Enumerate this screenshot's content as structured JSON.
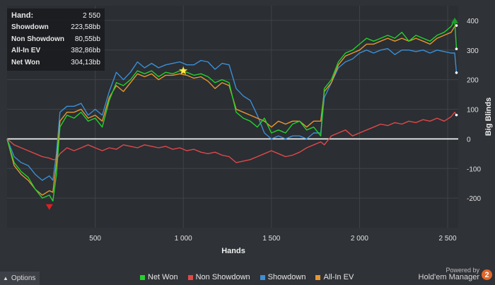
{
  "stats": [
    {
      "label": "Hand:",
      "value": "2 550"
    },
    {
      "label": "Showdown",
      "value": "223,58bb"
    },
    {
      "label": "Non Showdown",
      "value": "80,55bb"
    },
    {
      "label": "All-In EV",
      "value": "382,86bb"
    },
    {
      "label": "Net Won",
      "value": "304,13bb"
    }
  ],
  "options_label": "Options",
  "branding": {
    "powered_by": "Powered by",
    "product": "Hold'em Manager",
    "badge": "2"
  },
  "colors": {
    "net_won": "#22d12c",
    "non_showdown": "#e04848",
    "showdown": "#3a8fd6",
    "all_in_ev": "#e8962e",
    "zero_line": "#ffffff"
  },
  "chart_data": {
    "type": "line",
    "xlabel": "Hands",
    "ylabel": "Big Blinds",
    "xlim": [
      0,
      2560
    ],
    "ylim": [
      -300,
      450
    ],
    "x_ticks": [
      500,
      1000,
      1500,
      2000,
      2500
    ],
    "x_tick_labels": [
      "500",
      "1 000",
      "1 500",
      "2 000",
      "2 500"
    ],
    "y_ticks": [
      -200,
      -100,
      0,
      100,
      200,
      300,
      400
    ],
    "y_tick_labels": [
      "-200",
      "-100",
      "0",
      "100",
      "200",
      "300",
      "400"
    ],
    "grid": true,
    "legend_position": "bottom",
    "x": [
      0,
      40,
      80,
      120,
      160,
      200,
      240,
      260,
      280,
      300,
      340,
      380,
      420,
      460,
      500,
      540,
      580,
      620,
      660,
      700,
      740,
      780,
      820,
      860,
      900,
      940,
      980,
      1020,
      1060,
      1100,
      1140,
      1180,
      1220,
      1260,
      1300,
      1340,
      1380,
      1420,
      1460,
      1500,
      1540,
      1580,
      1620,
      1660,
      1700,
      1740,
      1780,
      1800,
      1840,
      1880,
      1920,
      1960,
      2000,
      2040,
      2080,
      2120,
      2160,
      2200,
      2240,
      2280,
      2320,
      2360,
      2400,
      2440,
      2480,
      2520,
      2540,
      2550
    ],
    "series": [
      {
        "name": "Net Won",
        "values": [
          0,
          -80,
          -110,
          -130,
          -170,
          -200,
          -190,
          -210,
          -120,
          40,
          80,
          70,
          90,
          60,
          70,
          40,
          130,
          190,
          180,
          200,
          230,
          220,
          230,
          210,
          225,
          220,
          230,
          225,
          215,
          220,
          210,
          190,
          200,
          190,
          90,
          70,
          60,
          40,
          70,
          20,
          30,
          20,
          50,
          60,
          30,
          40,
          10,
          170,
          200,
          260,
          290,
          300,
          320,
          340,
          330,
          340,
          350,
          340,
          360,
          330,
          350,
          340,
          330,
          350,
          360,
          380,
          400,
          304
        ]
      },
      {
        "name": "Non Showdown",
        "values": [
          0,
          -20,
          -30,
          -40,
          -50,
          -60,
          -65,
          -70,
          -70,
          -50,
          -30,
          -40,
          -30,
          -20,
          -30,
          -40,
          -30,
          -35,
          -20,
          -25,
          -30,
          -20,
          -25,
          -30,
          -25,
          -35,
          -30,
          -40,
          -35,
          -45,
          -50,
          -45,
          -55,
          -60,
          -80,
          -75,
          -70,
          -60,
          -50,
          -40,
          -50,
          -60,
          -55,
          -45,
          -30,
          -20,
          -10,
          -20,
          10,
          20,
          30,
          10,
          20,
          30,
          40,
          50,
          45,
          55,
          50,
          60,
          55,
          65,
          60,
          70,
          60,
          75,
          90,
          80.55
        ]
      },
      {
        "name": "Showdown",
        "values": [
          0,
          -60,
          -80,
          -90,
          -120,
          -140,
          -125,
          -140,
          -50,
          90,
          110,
          110,
          120,
          80,
          100,
          80,
          160,
          225,
          200,
          225,
          260,
          240,
          255,
          240,
          250,
          255,
          260,
          250,
          250,
          265,
          260,
          235,
          255,
          250,
          170,
          145,
          130,
          80,
          20,
          0,
          10,
          0,
          10,
          10,
          0,
          20,
          20,
          140,
          190,
          240,
          260,
          270,
          290,
          300,
          290,
          300,
          305,
          285,
          300,
          300,
          295,
          300,
          290,
          300,
          295,
          290,
          290,
          223.58
        ]
      },
      {
        "name": "All-In EV",
        "values": [
          0,
          -90,
          -120,
          -140,
          -170,
          -190,
          -175,
          -180,
          -80,
          60,
          90,
          90,
          100,
          70,
          80,
          60,
          140,
          180,
          160,
          190,
          220,
          210,
          220,
          200,
          215,
          215,
          220,
          215,
          205,
          210,
          195,
          170,
          190,
          180,
          100,
          90,
          80,
          70,
          60,
          40,
          60,
          50,
          60,
          60,
          40,
          60,
          60,
          160,
          190,
          250,
          280,
          290,
          300,
          320,
          320,
          330,
          340,
          330,
          340,
          330,
          340,
          330,
          320,
          340,
          350,
          360,
          380,
          382.86
        ]
      }
    ],
    "annotations": [
      {
        "marker": "star",
        "x": 1000,
        "y": 230
      },
      {
        "marker": "triangle-down",
        "x": 240,
        "y": -230
      },
      {
        "marker": "triangle-up",
        "x": 2540,
        "y": 400
      }
    ]
  }
}
